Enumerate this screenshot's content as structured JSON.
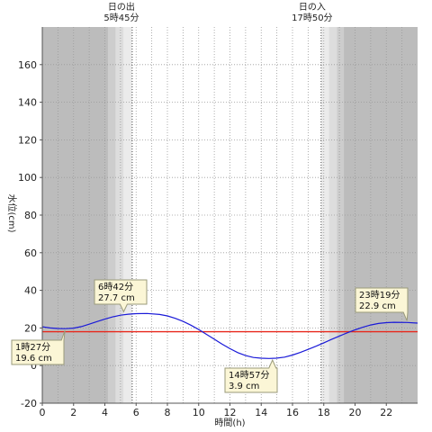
{
  "colors": {
    "night": "#bcbcbc",
    "twilight_1": "#cdcdcd",
    "twilight_2": "#dddddd",
    "twilight_3": "#ebebeb",
    "day": "#ffffff",
    "grid": "#9a9a9a",
    "sun_line": "#333333",
    "tide_line": "#1a1ad8",
    "reference_line": "#e8261a",
    "callout_fill": "#fbf6d6",
    "callout_stroke": "#9a9a7a"
  },
  "sun": {
    "sunrise_title": "日の出",
    "sunrise_time": "5時45分",
    "sunset_title": "日の入",
    "sunset_time": "17時50分"
  },
  "chart_data": {
    "type": "line",
    "xlabel": "時間(h)",
    "ylabel": "水位(cm)",
    "xlim": [
      0,
      24
    ],
    "ylim": [
      -20,
      180
    ],
    "x_ticks": [
      0,
      2,
      4,
      6,
      8,
      10,
      12,
      14,
      16,
      18,
      20,
      22
    ],
    "y_ticks": [
      -20,
      0,
      20,
      40,
      60,
      80,
      100,
      120,
      140,
      160
    ],
    "grid": true,
    "sunrise_hour": 5.75,
    "sunset_hour": 17.833,
    "reference_level": 18,
    "series": [
      {
        "x": [
          0,
          0.5,
          1,
          1.45,
          2,
          2.5,
          3,
          3.5,
          4,
          4.5,
          5,
          5.5,
          6,
          6.7,
          7.5,
          8,
          8.5,
          9,
          9.5,
          10,
          10.5,
          11,
          11.5,
          12,
          12.5,
          13,
          13.5,
          14,
          14.5,
          14.95,
          15.5,
          16,
          16.5,
          17,
          17.5,
          18,
          18.5,
          19,
          19.5,
          20,
          20.5,
          21,
          21.5,
          22,
          22.5,
          23.32,
          24
        ],
        "y": [
          20.6,
          20.0,
          19.7,
          19.6,
          19.9,
          20.7,
          22.0,
          23.4,
          24.7,
          25.9,
          26.8,
          27.3,
          27.6,
          27.7,
          27.2,
          26.4,
          25.1,
          23.5,
          21.5,
          19.2,
          16.6,
          14.0,
          11.4,
          9.0,
          6.9,
          5.3,
          4.3,
          3.9,
          3.8,
          3.9,
          4.5,
          5.6,
          7.0,
          8.6,
          10.3,
          12.1,
          13.9,
          15.7,
          17.4,
          19.0,
          20.4,
          21.6,
          22.4,
          22.8,
          23.0,
          22.9,
          22.6
        ]
      }
    ],
    "annotations": [
      {
        "time": "1時27分",
        "value": "19.6 cm",
        "x": 1.45,
        "y": 19.6
      },
      {
        "time": "6時42分",
        "value": "27.7 cm",
        "x": 6.7,
        "y": 27.7
      },
      {
        "time": "14時57分",
        "value": "3.9 cm",
        "x": 14.95,
        "y": 3.9
      },
      {
        "time": "23時19分",
        "value": "22.9 cm",
        "x": 23.32,
        "y": 22.9
      }
    ]
  }
}
